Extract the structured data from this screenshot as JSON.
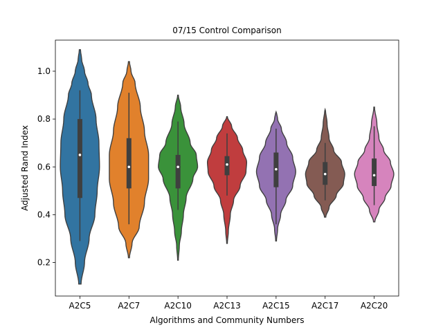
{
  "chart_data": {
    "type": "violin",
    "title": "07/15 Control Comparison",
    "xlabel": "Algorithms and Community Numbers",
    "ylabel": "Adjusted Rand Index",
    "ylim": [
      0.06,
      1.13
    ],
    "yticks": [
      0.2,
      0.4,
      0.6,
      0.8,
      1.0
    ],
    "ytick_labels": [
      "0.2",
      "0.4",
      "0.6",
      "0.8",
      "1.0"
    ],
    "grid": false,
    "categories": [
      "A2C5",
      "A2C7",
      "A2C10",
      "A2C13",
      "A2C15",
      "A2C17",
      "A2C20"
    ],
    "series": [
      {
        "category": "A2C5",
        "color": "#3274a1",
        "min": 0.11,
        "max": 1.09,
        "q1": 0.47,
        "median": 0.65,
        "q3": 0.8,
        "whisker_low": 0.29,
        "whisker_high": 0.92,
        "density": [
          [
            0.11,
            0.01
          ],
          [
            0.2,
            0.04
          ],
          [
            0.3,
            0.08
          ],
          [
            0.4,
            0.13
          ],
          [
            0.5,
            0.15
          ],
          [
            0.6,
            0.17
          ],
          [
            0.7,
            0.165
          ],
          [
            0.8,
            0.14
          ],
          [
            0.9,
            0.1
          ],
          [
            0.95,
            0.07
          ],
          [
            1.0,
            0.04
          ],
          [
            1.05,
            0.015
          ],
          [
            1.09,
            0.005
          ]
        ]
      },
      {
        "category": "A2C7",
        "color": "#e1812c",
        "min": 0.22,
        "max": 1.04,
        "q1": 0.51,
        "median": 0.6,
        "q3": 0.72,
        "whisker_low": 0.36,
        "whisker_high": 0.91,
        "density": [
          [
            0.22,
            0.005
          ],
          [
            0.28,
            0.03
          ],
          [
            0.35,
            0.1
          ],
          [
            0.45,
            0.15
          ],
          [
            0.55,
            0.19
          ],
          [
            0.65,
            0.19
          ],
          [
            0.75,
            0.15
          ],
          [
            0.85,
            0.11
          ],
          [
            0.95,
            0.06
          ],
          [
            1.0,
            0.02
          ],
          [
            1.04,
            0.005
          ]
        ]
      },
      {
        "category": "A2C10",
        "color": "#3a923a",
        "min": 0.21,
        "max": 0.9,
        "q1": 0.51,
        "median": 0.6,
        "q3": 0.65,
        "whisker_low": 0.42,
        "whisker_high": 0.79,
        "density": [
          [
            0.21,
            0.005
          ],
          [
            0.27,
            0.02
          ],
          [
            0.33,
            0.05
          ],
          [
            0.4,
            0.08
          ],
          [
            0.47,
            0.12
          ],
          [
            0.55,
            0.22
          ],
          [
            0.6,
            0.29
          ],
          [
            0.65,
            0.27
          ],
          [
            0.7,
            0.18
          ],
          [
            0.78,
            0.09
          ],
          [
            0.85,
            0.04
          ],
          [
            0.9,
            0.005
          ]
        ]
      },
      {
        "category": "A2C13",
        "color": "#c03d3e",
        "min": 0.28,
        "max": 0.81,
        "q1": 0.565,
        "median": 0.61,
        "q3": 0.645,
        "whisker_low": 0.48,
        "whisker_high": 0.74,
        "density": [
          [
            0.28,
            0.005
          ],
          [
            0.33,
            0.02
          ],
          [
            0.4,
            0.05
          ],
          [
            0.46,
            0.1
          ],
          [
            0.52,
            0.2
          ],
          [
            0.58,
            0.29
          ],
          [
            0.62,
            0.3
          ],
          [
            0.67,
            0.24
          ],
          [
            0.72,
            0.16
          ],
          [
            0.77,
            0.07
          ],
          [
            0.81,
            0.005
          ]
        ]
      },
      {
        "category": "A2C15",
        "color": "#9372b2",
        "min": 0.29,
        "max": 0.83,
        "q1": 0.515,
        "median": 0.59,
        "q3": 0.66,
        "whisker_low": 0.36,
        "whisker_high": 0.76,
        "density": [
          [
            0.29,
            0.005
          ],
          [
            0.34,
            0.02
          ],
          [
            0.4,
            0.06
          ],
          [
            0.46,
            0.13
          ],
          [
            0.52,
            0.22
          ],
          [
            0.58,
            0.26
          ],
          [
            0.64,
            0.22
          ],
          [
            0.7,
            0.14
          ],
          [
            0.76,
            0.07
          ],
          [
            0.8,
            0.02
          ],
          [
            0.83,
            0.005
          ]
        ]
      },
      {
        "category": "A2C17",
        "color": "#845b53",
        "min": 0.39,
        "max": 0.84,
        "q1": 0.525,
        "median": 0.57,
        "q3": 0.62,
        "whisker_low": 0.46,
        "whisker_high": 0.7,
        "density": [
          [
            0.39,
            0.01
          ],
          [
            0.43,
            0.06
          ],
          [
            0.48,
            0.17
          ],
          [
            0.53,
            0.28
          ],
          [
            0.57,
            0.3
          ],
          [
            0.62,
            0.25
          ],
          [
            0.67,
            0.13
          ],
          [
            0.72,
            0.06
          ],
          [
            0.78,
            0.03
          ],
          [
            0.84,
            0.005
          ]
        ]
      },
      {
        "category": "A2C20",
        "color": "#d684bd",
        "min": 0.37,
        "max": 0.85,
        "q1": 0.52,
        "median": 0.565,
        "q3": 0.635,
        "whisker_low": 0.44,
        "whisker_high": 0.77,
        "density": [
          [
            0.37,
            0.01
          ],
          [
            0.42,
            0.07
          ],
          [
            0.47,
            0.16
          ],
          [
            0.52,
            0.25
          ],
          [
            0.57,
            0.29
          ],
          [
            0.62,
            0.24
          ],
          [
            0.67,
            0.14
          ],
          [
            0.72,
            0.07
          ],
          [
            0.78,
            0.04
          ],
          [
            0.85,
            0.005
          ]
        ]
      }
    ]
  }
}
